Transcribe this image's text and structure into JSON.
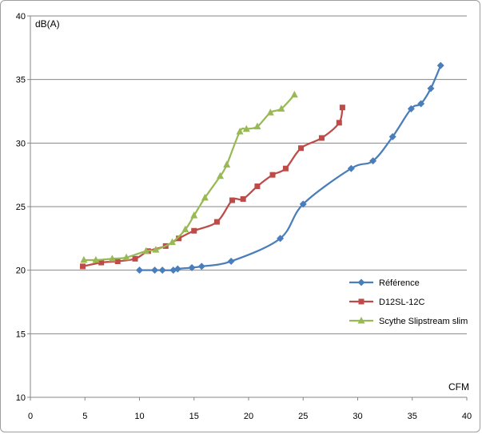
{
  "chart_data": {
    "type": "line",
    "title": "",
    "xlabel": "CFM",
    "ylabel": "dB(A)",
    "xlim": [
      0,
      40
    ],
    "ylim": [
      10,
      40
    ],
    "xticks": [
      0,
      5,
      10,
      15,
      20,
      25,
      30,
      35,
      40
    ],
    "yticks": [
      10,
      15,
      20,
      25,
      30,
      35,
      40
    ],
    "grid": "horizontal",
    "legend_position": "right",
    "series": [
      {
        "name": "Référence",
        "color": "#4a7ebb",
        "marker": "diamond",
        "points": [
          [
            10.0,
            20.0
          ],
          [
            11.4,
            20.0
          ],
          [
            12.1,
            20.0
          ],
          [
            13.1,
            20.0
          ],
          [
            13.5,
            20.1
          ],
          [
            14.8,
            20.2
          ],
          [
            15.7,
            20.3
          ],
          [
            18.4,
            20.7
          ],
          [
            22.9,
            22.5
          ],
          [
            25.0,
            25.2
          ],
          [
            29.4,
            28.0
          ],
          [
            31.4,
            28.6
          ],
          [
            33.2,
            30.5
          ],
          [
            34.9,
            32.7
          ],
          [
            35.8,
            33.1
          ],
          [
            36.7,
            34.3
          ],
          [
            37.6,
            36.1
          ]
        ]
      },
      {
        "name": "D12SL-12C",
        "color": "#be4b48",
        "marker": "square",
        "points": [
          [
            4.8,
            20.3
          ],
          [
            6.5,
            20.6
          ],
          [
            8.0,
            20.7
          ],
          [
            9.6,
            20.9
          ],
          [
            10.8,
            21.5
          ],
          [
            12.4,
            21.9
          ],
          [
            13.6,
            22.5
          ],
          [
            15.0,
            23.1
          ],
          [
            17.1,
            23.8
          ],
          [
            18.5,
            25.5
          ],
          [
            19.5,
            25.6
          ],
          [
            20.8,
            26.6
          ],
          [
            22.2,
            27.5
          ],
          [
            23.4,
            28.0
          ],
          [
            24.8,
            29.6
          ],
          [
            26.7,
            30.4
          ],
          [
            28.3,
            31.6
          ],
          [
            28.6,
            32.8
          ]
        ]
      },
      {
        "name": "Scythe Slipstream slim",
        "color": "#98b954",
        "marker": "triangle",
        "points": [
          [
            4.9,
            20.8
          ],
          [
            6.0,
            20.8
          ],
          [
            7.5,
            20.9
          ],
          [
            8.8,
            21.0
          ],
          [
            10.6,
            21.5
          ],
          [
            11.5,
            21.6
          ],
          [
            13.0,
            22.2
          ],
          [
            14.2,
            23.2
          ],
          [
            15.0,
            24.3
          ],
          [
            16.0,
            25.7
          ],
          [
            17.4,
            27.4
          ],
          [
            18.0,
            28.3
          ],
          [
            19.2,
            30.9
          ],
          [
            19.8,
            31.1
          ],
          [
            20.8,
            31.3
          ],
          [
            22.0,
            32.4
          ],
          [
            23.0,
            32.7
          ],
          [
            24.2,
            33.8
          ]
        ]
      }
    ]
  }
}
